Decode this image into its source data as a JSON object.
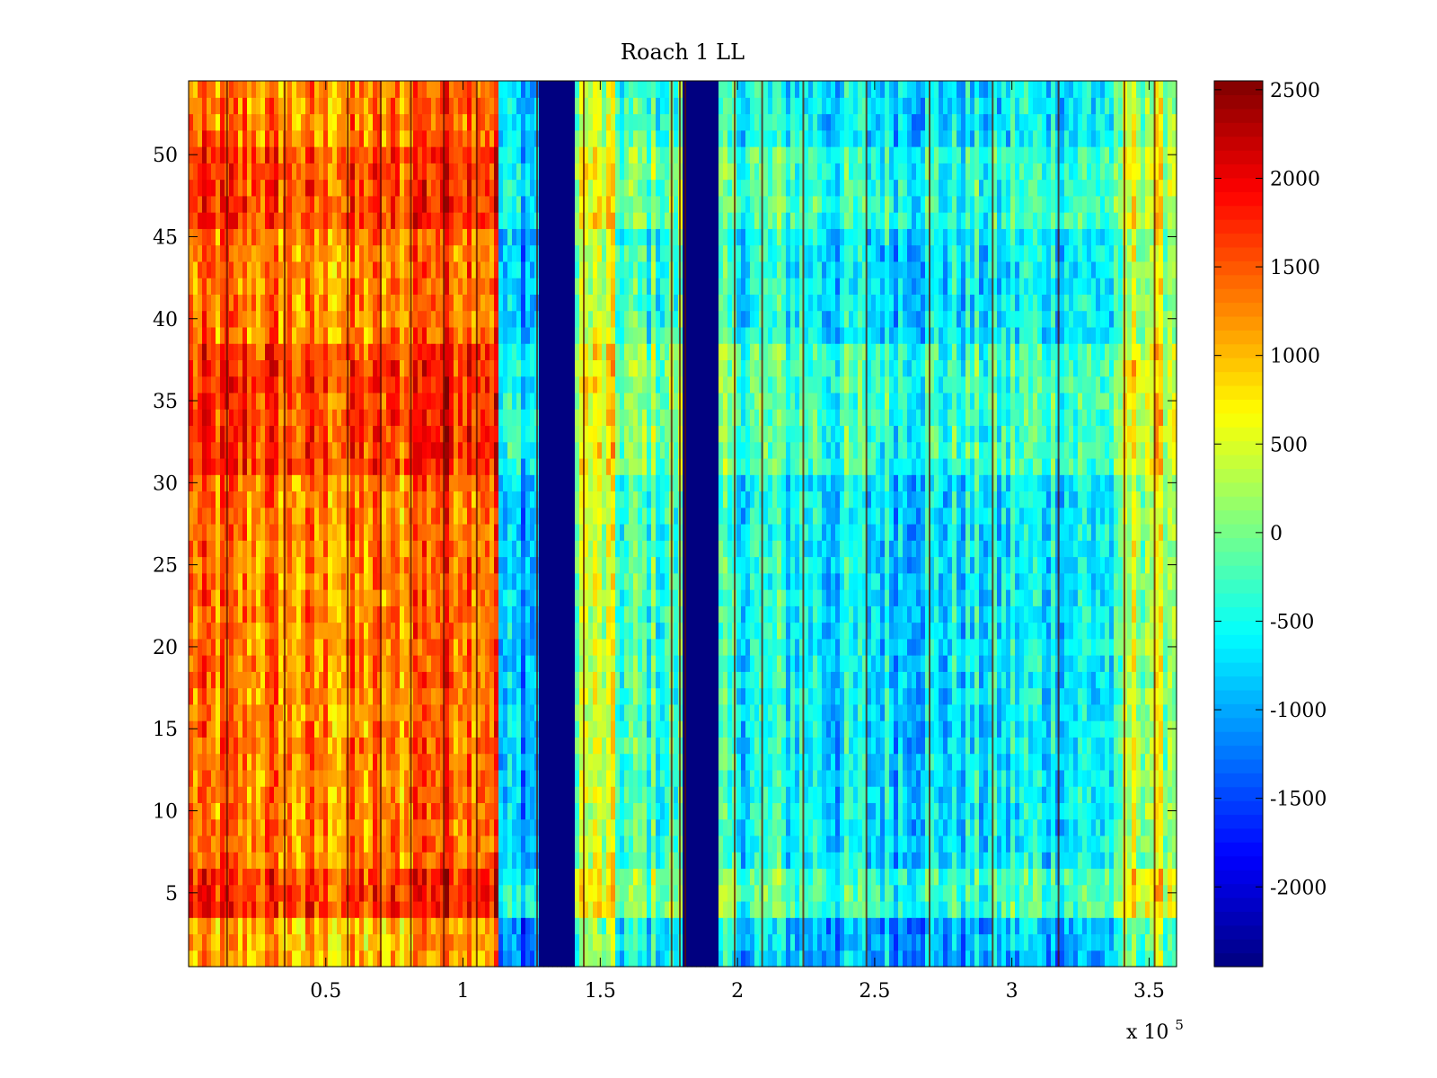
{
  "chart_data": {
    "type": "heatmap",
    "title": "Roach 1 LL",
    "xlabel": "",
    "ylabel": "",
    "x_multiplier_label": "x 10",
    "x_multiplier_exponent": "5",
    "xlim": [
      0.0,
      3.6
    ],
    "ylim": [
      0.5,
      54.5
    ],
    "x_ticks": [
      0.5,
      1,
      1.5,
      2,
      2.5,
      3,
      3.5
    ],
    "x_tick_labels": [
      "0.5",
      "1",
      "1.5",
      "2",
      "2.5",
      "3",
      "3.5"
    ],
    "y_ticks": [
      5,
      10,
      15,
      20,
      25,
      30,
      35,
      40,
      45,
      50
    ],
    "y_tick_labels": [
      "5",
      "10",
      "15",
      "20",
      "25",
      "30",
      "35",
      "40",
      "45",
      "50"
    ],
    "n_rows": 54,
    "colorbar": {
      "colormap": "jet",
      "range": [
        -2450,
        2550
      ],
      "ticks": [
        -2000,
        -1500,
        -1000,
        -500,
        0,
        500,
        1000,
        1500,
        2000,
        2500
      ],
      "tick_labels": [
        "-2000",
        "-1500",
        "-1000",
        "-500",
        "0",
        "500",
        "1000",
        "1500",
        "2000",
        "2500"
      ]
    },
    "column_segments": [
      {
        "x_start": 0.0,
        "x_end": 0.35,
        "value": 1300
      },
      {
        "x_start": 0.35,
        "x_end": 0.8,
        "value": 1200
      },
      {
        "x_start": 0.8,
        "x_end": 1.13,
        "value": 1550
      },
      {
        "x_start": 1.13,
        "x_end": 1.28,
        "value": -900
      },
      {
        "x_start": 1.28,
        "x_end": 1.41,
        "value": -2450
      },
      {
        "x_start": 1.41,
        "x_end": 1.55,
        "value": 300
      },
      {
        "x_start": 1.55,
        "x_end": 1.8,
        "value": -300
      },
      {
        "x_start": 1.8,
        "x_end": 1.93,
        "value": -2450
      },
      {
        "x_start": 1.93,
        "x_end": 2.3,
        "value": -500
      },
      {
        "x_start": 2.3,
        "x_end": 3.0,
        "value": -700
      },
      {
        "x_start": 3.0,
        "x_end": 3.4,
        "value": -600
      },
      {
        "x_start": 3.4,
        "x_end": 3.6,
        "value": 300
      }
    ],
    "row_bands": [
      {
        "y_start": 0.5,
        "y_end": 3.5,
        "offset": -300
      },
      {
        "y_start": 3.5,
        "y_end": 6.5,
        "offset": 400
      },
      {
        "y_start": 30.5,
        "y_end": 38.5,
        "offset": 350
      },
      {
        "y_start": 45.5,
        "y_end": 50.5,
        "offset": 300
      }
    ],
    "vertical_lines": [
      0.14,
      0.35,
      0.58,
      0.7,
      0.81,
      0.93,
      1.05,
      1.27,
      1.44,
      1.76,
      1.79,
      1.81,
      1.99,
      2.09,
      2.24,
      2.47,
      2.7,
      2.93,
      3.17,
      3.41,
      3.52
    ]
  }
}
